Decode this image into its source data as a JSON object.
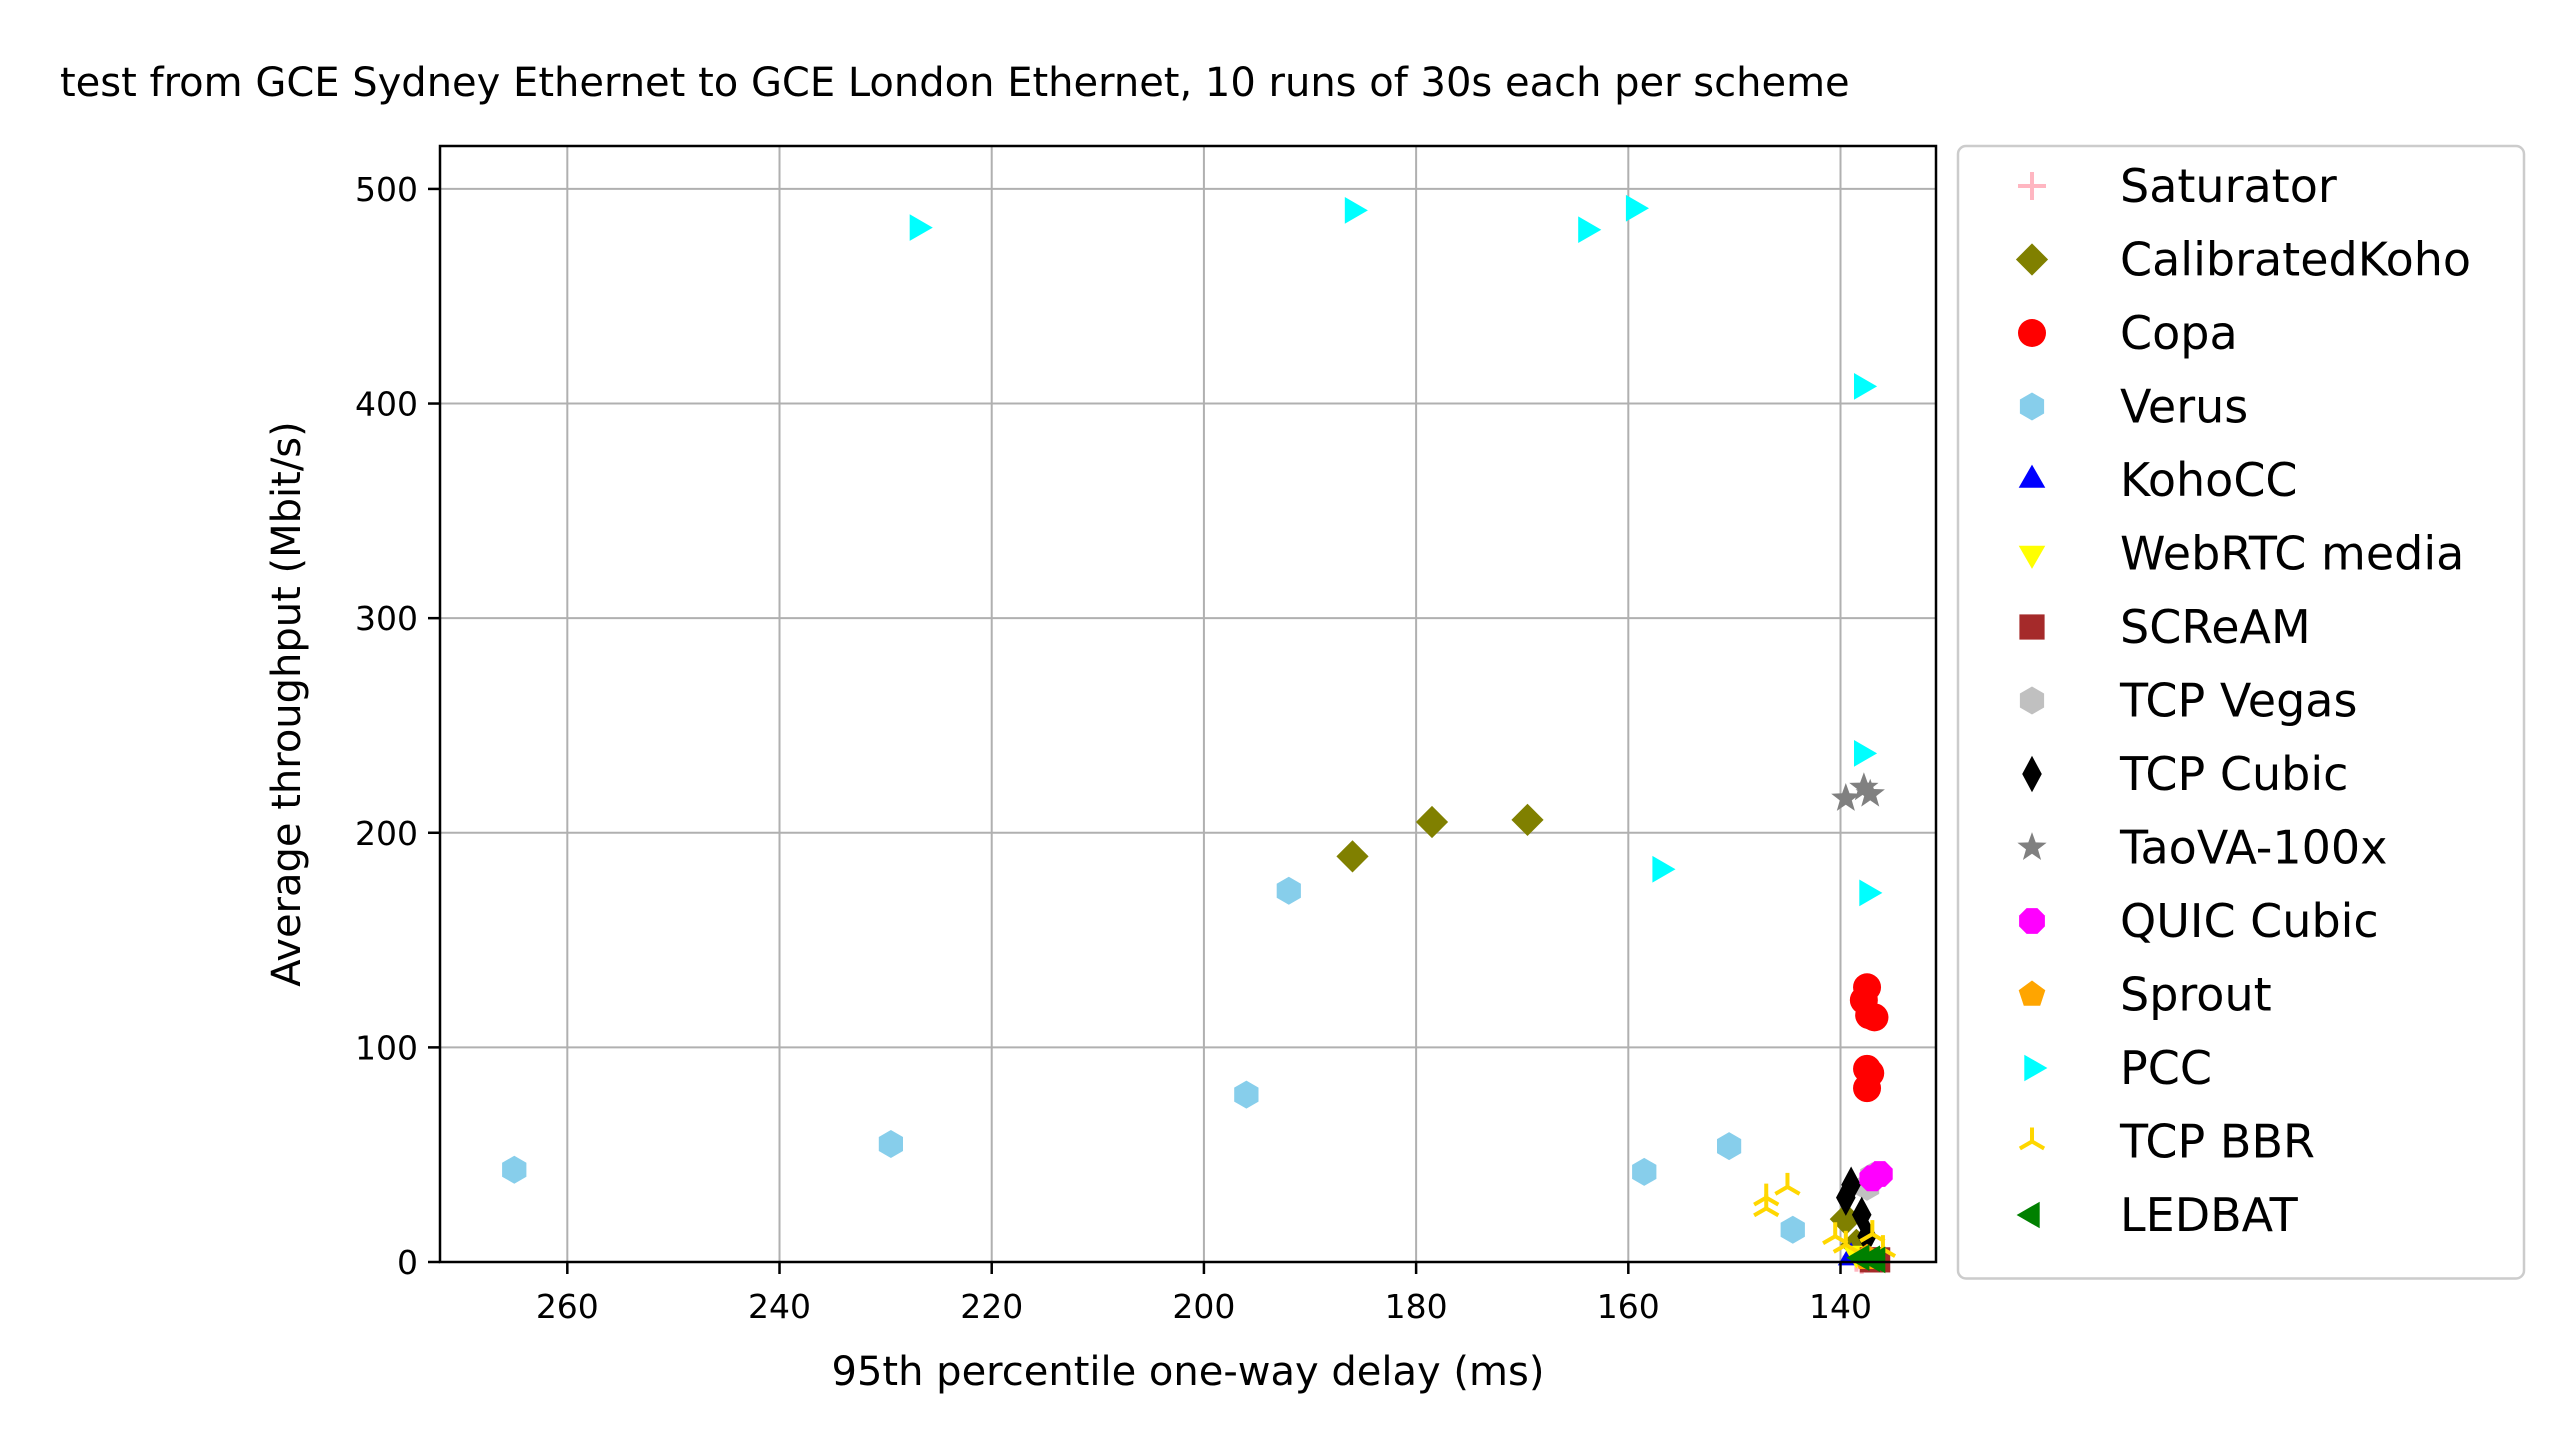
{
  "chart_data": {
    "type": "scatter",
    "title": "test from GCE Sydney Ethernet to GCE London Ethernet, 10 runs of 30s each per scheme",
    "xlabel": "95th percentile one-way delay (ms)",
    "ylabel": "Average throughput (Mbit/s)",
    "xlim": [
      272,
      131
    ],
    "ylim": [
      0,
      520
    ],
    "x_inverted": true,
    "grid": true,
    "legend_position": "outside-right",
    "xticks": [
      260,
      240,
      220,
      200,
      180,
      160,
      140
    ],
    "yticks": [
      0,
      100,
      200,
      300,
      400,
      500
    ],
    "series": [
      {
        "name": "Saturator",
        "marker": "plus",
        "color": "#ffb6c1",
        "points": [
          [
            138.5,
            2
          ],
          [
            138.0,
            1
          ]
        ]
      },
      {
        "name": "CalibratedKoho",
        "marker": "diamond",
        "color": "#808000",
        "points": [
          [
            186,
            189
          ],
          [
            178.5,
            205
          ],
          [
            169.5,
            206
          ],
          [
            139.5,
            20
          ],
          [
            138.5,
            8
          ]
        ]
      },
      {
        "name": "Copa",
        "marker": "circle",
        "color": "#ff0000",
        "points": [
          [
            137.5,
            128
          ],
          [
            137.8,
            122
          ],
          [
            137.3,
            115
          ],
          [
            136.8,
            114
          ],
          [
            137.5,
            90
          ],
          [
            137.2,
            88
          ],
          [
            137.5,
            81
          ]
        ]
      },
      {
        "name": "Verus",
        "marker": "hexagon",
        "color": "#87ceeb",
        "points": [
          [
            265,
            43
          ],
          [
            229.5,
            55
          ],
          [
            192,
            173
          ],
          [
            196,
            78
          ],
          [
            158.5,
            42
          ],
          [
            150.5,
            54
          ],
          [
            144.5,
            15
          ]
        ]
      },
      {
        "name": "KohoCC",
        "marker": "triangle-up",
        "color": "#0000ff",
        "points": [
          [
            139,
            2
          ]
        ]
      },
      {
        "name": "WebRTC media",
        "marker": "triangle-down",
        "color": "#ffff00",
        "points": [
          [
            138.5,
            4
          ],
          [
            137.5,
            3
          ]
        ]
      },
      {
        "name": "SCReAM",
        "marker": "square",
        "color": "#a52a2a",
        "points": [
          [
            137,
            1
          ],
          [
            136.5,
            1
          ]
        ]
      },
      {
        "name": "TCP Vegas",
        "marker": "hexagon",
        "color": "#c0c0c0",
        "points": [
          [
            137.5,
            35
          ],
          [
            137,
            40
          ]
        ]
      },
      {
        "name": "TCP Cubic",
        "marker": "thin-diamond",
        "color": "#000000",
        "points": [
          [
            139.5,
            30
          ],
          [
            139,
            36
          ],
          [
            138,
            22
          ],
          [
            137.5,
            12
          ]
        ]
      },
      {
        "name": "TaoVA-100x",
        "marker": "star",
        "color": "#808080",
        "points": [
          [
            139.5,
            216
          ],
          [
            137.8,
            221
          ],
          [
            137.2,
            218
          ]
        ]
      },
      {
        "name": "QUIC Cubic",
        "marker": "octagon",
        "color": "#ff00ff",
        "points": [
          [
            137,
            39
          ],
          [
            136.3,
            41
          ]
        ]
      },
      {
        "name": "Sprout",
        "marker": "pentagon",
        "color": "#ffa500",
        "points": [
          [
            137.5,
            2
          ]
        ]
      },
      {
        "name": "PCC",
        "marker": "triangle-right",
        "color": "#00ffff",
        "points": [
          [
            227,
            482
          ],
          [
            186,
            490
          ],
          [
            164,
            481
          ],
          [
            159.5,
            491
          ],
          [
            138,
            408
          ],
          [
            138,
            237
          ],
          [
            157,
            183
          ],
          [
            137.5,
            172
          ]
        ]
      },
      {
        "name": "TCP BBR",
        "marker": "tri-down",
        "color": "#ffd700",
        "points": [
          [
            147,
            30
          ],
          [
            147,
            25
          ],
          [
            145,
            35
          ],
          [
            140.5,
            12
          ],
          [
            139.5,
            8
          ],
          [
            137,
            13
          ],
          [
            136,
            6
          ]
        ]
      },
      {
        "name": "LEDBAT",
        "marker": "triangle-left",
        "color": "#008000",
        "points": [
          [
            138,
            2
          ],
          [
            137,
            1.5
          ],
          [
            136.5,
            1
          ]
        ]
      }
    ]
  }
}
